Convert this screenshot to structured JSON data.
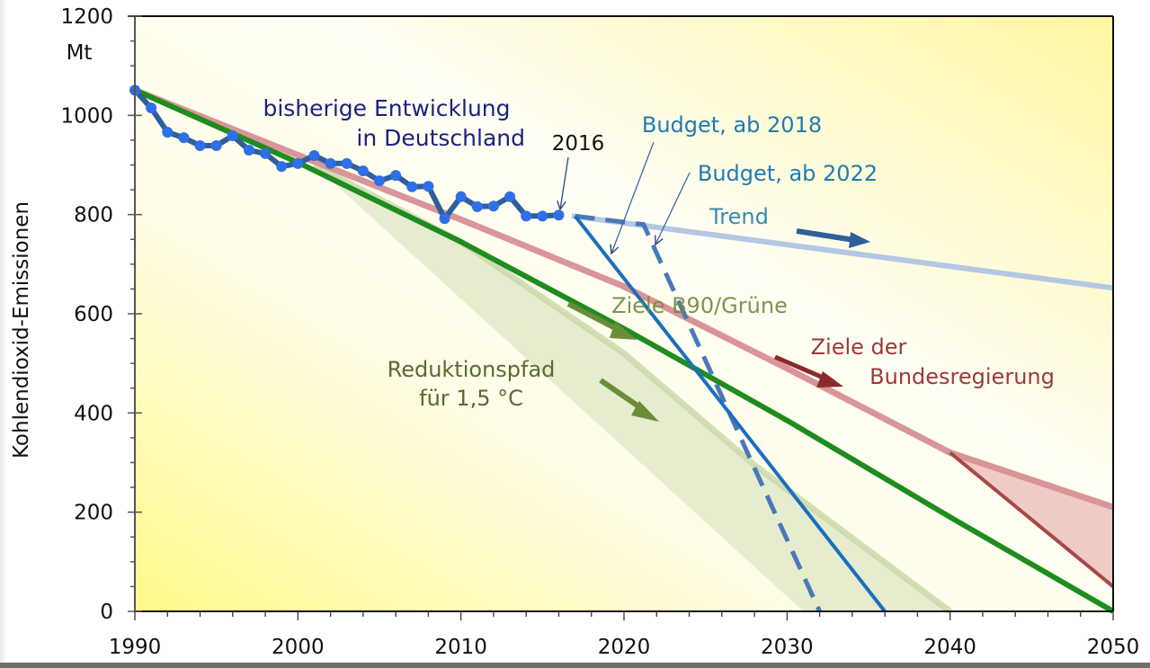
{
  "chart_data": {
    "type": "line",
    "title": "",
    "xlabel": "",
    "ylabel": "Kohlendioxid-Emissionen",
    "yunit": "Mt",
    "xlim": [
      1990,
      2050
    ],
    "ylim": [
      0,
      1200
    ],
    "x_ticks": [
      1990,
      2000,
      2010,
      2020,
      2030,
      2040,
      2050
    ],
    "y_ticks": [
      0,
      200,
      400,
      600,
      800,
      1000,
      1200
    ],
    "x_tick_labels": [
      "1990",
      "2000",
      "2010",
      "2020",
      "2030",
      "2040",
      "2050"
    ],
    "y_tick_labels": [
      "0",
      "200",
      "400",
      "600",
      "800",
      "1000",
      "1200"
    ],
    "grid": false,
    "background": "yellow gradient",
    "series": [
      {
        "name": "bisherige Entwicklung in Deutschland",
        "kind": "line-markers",
        "color": "#2f5f9a",
        "marker_color": "#2f6fe8",
        "x": [
          1990,
          1991,
          1992,
          1993,
          1994,
          1995,
          1996,
          1997,
          1998,
          1999,
          2000,
          2001,
          2002,
          2003,
          2004,
          2005,
          2006,
          2007,
          2008,
          2009,
          2010,
          2011,
          2012,
          2013,
          2014,
          2015,
          2016
        ],
        "y": [
          1051,
          1015,
          966,
          955,
          939,
          939,
          959,
          930,
          923,
          897,
          903,
          919,
          903,
          903,
          888,
          868,
          879,
          856,
          857,
          792,
          836,
          816,
          817,
          836,
          797,
          797,
          799
        ]
      },
      {
        "name": "Trend",
        "kind": "line",
        "color": "#b4c8e4",
        "x": [
          2016.8,
          2050
        ],
        "y": [
          797,
          652
        ]
      },
      {
        "name": "Budget, ab 2018",
        "kind": "line",
        "color": "#1a6fbf",
        "x": [
          2017,
          2036
        ],
        "y": [
          797,
          0
        ]
      },
      {
        "name": "Budget, ab 2022",
        "kind": "dashed-line",
        "color": "#4a78b8",
        "x": [
          2017,
          2021.2,
          2032
        ],
        "y": [
          797,
          780,
          0
        ]
      },
      {
        "name": "Ziele B90/Grüne",
        "kind": "line",
        "color": "#1e8c1e",
        "x": [
          1990,
          2000,
          2010,
          2020,
          2030,
          2040,
          2050
        ],
        "y": [
          1051,
          905,
          745,
          570,
          385,
          190,
          0
        ]
      },
      {
        "name": "Ziele der Bundesregierung",
        "kind": "line",
        "color": "#d99597",
        "x": [
          1990,
          2000,
          2010,
          2020,
          2030,
          2040,
          2050
        ],
        "y": [
          1051,
          920,
          790,
          655,
          490,
          320,
          210
        ]
      },
      {
        "name": "Ziele der Bundesregierung (untere Grenze 2040-2050)",
        "kind": "line",
        "color": "#a84848",
        "x": [
          2040,
          2050
        ],
        "y": [
          320,
          50
        ]
      },
      {
        "name": "Reduktionspfad für 1,5 °C (obere Grenze)",
        "kind": "band-edge",
        "color": "#c8d8a8",
        "x": [
          2001,
          2010,
          2020,
          2028,
          2040
        ],
        "y": [
          900,
          745,
          520,
          295,
          0
        ]
      },
      {
        "name": "Reduktionspfad für 1,5 °C (untere Grenze)",
        "kind": "band-edge",
        "color": "#c8d8a8",
        "x": [
          2001,
          2031
        ],
        "y": [
          900,
          0
        ]
      }
    ],
    "annotations": [
      {
        "text": "bisherige Entwicklung",
        "color": "#1a237e"
      },
      {
        "text": "in Deutschland",
        "color": "#1a237e"
      },
      {
        "text": "2016",
        "color": "#111111"
      },
      {
        "text": "Budget, ab 2018",
        "color": "#1f7ab8"
      },
      {
        "text": "Budget, ab 2022",
        "color": "#1f7ab8"
      },
      {
        "text": "Trend",
        "color": "#3a8ab0"
      },
      {
        "text": "Ziele B90/Grüne",
        "color": "#6b8c3a"
      },
      {
        "text": "Reduktionspfad",
        "color": "#556b2f"
      },
      {
        "text": "für 1,5 °C",
        "color": "#556b2f"
      },
      {
        "text": "Ziele der",
        "color": "#9b3a3a"
      },
      {
        "text": "Bundesregierung",
        "color": "#9b3a3a"
      }
    ]
  }
}
